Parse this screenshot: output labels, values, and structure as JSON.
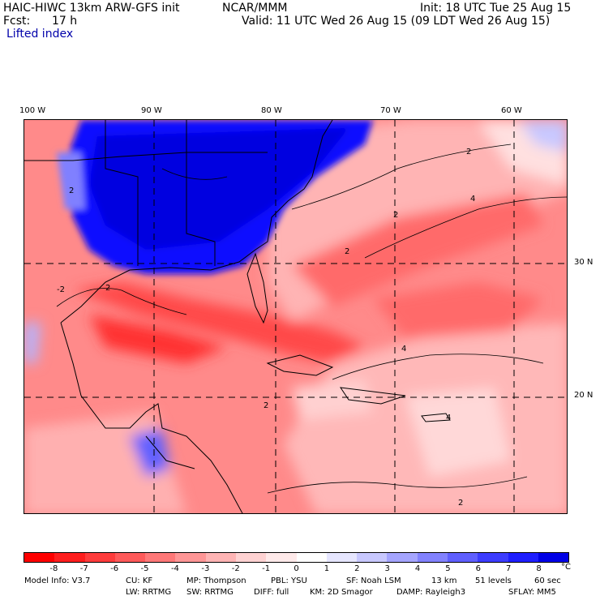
{
  "header": {
    "model_title": "HAIC-HIWC 13km ARW-GFS init",
    "org": "NCAR/MMM",
    "init": "Init: 18 UTC Tue 25 Aug 15",
    "fcst_label": "Fcst:",
    "fcst_value": "17 h",
    "valid": "Valid: 11 UTC Wed 26 Aug 15 (09 LDT Wed 26 Aug 15)",
    "field": "Lifted index"
  },
  "map": {
    "lon_labels": [
      "100 W",
      "90 W",
      "80 W",
      "70 W",
      "60 W"
    ],
    "lat_labels": [
      "30 N",
      "20 N"
    ],
    "contour_labels": [
      "2",
      "4",
      "2",
      "2",
      "4",
      "2",
      "2",
      "-2",
      "2",
      "4",
      "2",
      "2"
    ]
  },
  "colorbar": {
    "colors": [
      "#ff0000",
      "#ff1e1e",
      "#ff3c3c",
      "#ff5a5a",
      "#ff7878",
      "#ff9696",
      "#ffb4b4",
      "#ffd2d2",
      "#ffeaea",
      "#ffffff",
      "#e6e6ff",
      "#c8c8ff",
      "#a5a5ff",
      "#8282ff",
      "#5f5fff",
      "#3c3cff",
      "#1e1eff",
      "#0000e6"
    ],
    "ticks": [
      "-8",
      "-7",
      "-6",
      "-5",
      "-4",
      "-3",
      "-2",
      "-1",
      "0",
      "1",
      "2",
      "3",
      "4",
      "5",
      "6",
      "7",
      "8"
    ],
    "unit": "°C"
  },
  "model_info": {
    "line1": [
      "Model Info: V3.7",
      "CU: KF",
      "MP: Thompson",
      "PBL: YSU",
      "SF: Noah LSM",
      "13 km",
      "51 levels",
      "60 sec"
    ],
    "line2": [
      "LW: RRTMG",
      "SW: RRTMG",
      "DIFF: full",
      "KM: 2D Smagor",
      "DAMP: Rayleigh3",
      "SFLAY: MM5"
    ]
  }
}
